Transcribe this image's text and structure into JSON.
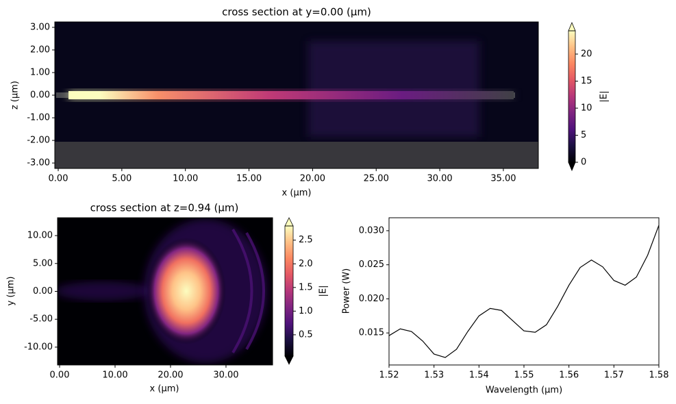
{
  "chart_data": [
    {
      "type": "heatmap",
      "title": "cross section at y=0.00 (μm)",
      "xlabel": "x (μm)",
      "ylabel": "z (μm)",
      "xlim": [
        -0.27,
        37.75
      ],
      "ylim": [
        -3.24,
        3.24
      ],
      "xticks": [
        {
          "value": 0,
          "label": "0.00"
        },
        {
          "value": 5,
          "label": "5.00"
        },
        {
          "value": 10,
          "label": "10.00"
        },
        {
          "value": 15,
          "label": "15.00"
        },
        {
          "value": 20,
          "label": "20.00"
        },
        {
          "value": 25,
          "label": "25.00"
        },
        {
          "value": 30,
          "label": "30.00"
        },
        {
          "value": 35,
          "label": "35.00"
        }
      ],
      "yticks": [
        {
          "value": 3,
          "label": "3.00"
        },
        {
          "value": 2,
          "label": "2.00"
        },
        {
          "value": 1,
          "label": "1.00"
        },
        {
          "value": 0,
          "label": "0.00"
        },
        {
          "value": -1,
          "label": "-1.00"
        },
        {
          "value": -2,
          "label": "-2.00"
        },
        {
          "value": -3,
          "label": "-3.00"
        }
      ],
      "colorbar": {
        "label": "|E|",
        "lim": [
          0,
          24.3
        ],
        "ticks": [
          0,
          5,
          10,
          15,
          20
        ]
      }
    },
    {
      "type": "heatmap",
      "title": "cross section at z=0.94 (μm)",
      "xlabel": "x (μm)",
      "ylabel": "y (μm)",
      "xlim": [
        -0.37,
        38.4
      ],
      "ylim": [
        -13.2,
        13.2
      ],
      "xticks": [
        {
          "value": 0,
          "label": "0.00"
        },
        {
          "value": 10,
          "label": "10.00"
        },
        {
          "value": 20,
          "label": "20.00"
        },
        {
          "value": 30,
          "label": "30.00"
        }
      ],
      "yticks": [
        {
          "value": 10,
          "label": "10.00"
        },
        {
          "value": 5,
          "label": "5.00"
        },
        {
          "value": 0,
          "label": "0.00"
        },
        {
          "value": -5,
          "label": "-5.00"
        },
        {
          "value": -10,
          "label": "-10.00"
        }
      ],
      "colorbar": {
        "label": "|E|",
        "lim": [
          0.05,
          2.8
        ],
        "ticks": [
          0.5,
          {
            "value": 1,
            "label": "1.0"
          },
          1.5,
          {
            "value": 2,
            "label": "2.0"
          },
          2.5
        ]
      }
    },
    {
      "type": "line",
      "xlabel": "Wavelength (μm)",
      "ylabel": "Power (W)",
      "color": "#000000",
      "xlim": [
        1.52,
        1.58
      ],
      "ylim": [
        0.0103,
        0.0319
      ],
      "xticks": [
        1.52,
        1.53,
        1.54,
        1.55,
        1.56,
        1.57,
        1.58
      ],
      "yticks": [
        0.015,
        {
          "value": 0.02,
          "label": "0.020"
        },
        0.025,
        {
          "value": 0.03,
          "label": "0.030"
        }
      ],
      "x": [
        1.52,
        1.5225,
        1.525,
        1.5275,
        1.53,
        1.5325,
        1.535,
        1.5375,
        1.54,
        1.5425,
        1.545,
        1.5475,
        1.55,
        1.5525,
        1.555,
        1.5575,
        1.56,
        1.5625,
        1.565,
        1.5675,
        1.57,
        1.5725,
        1.575,
        1.5775,
        1.58
      ],
      "values": [
        0.0146,
        0.0156,
        0.0152,
        0.0138,
        0.0119,
        0.0114,
        0.0126,
        0.0152,
        0.0175,
        0.0186,
        0.0183,
        0.0168,
        0.0153,
        0.0151,
        0.0162,
        0.0189,
        0.022,
        0.0246,
        0.0257,
        0.0247,
        0.0227,
        0.022,
        0.0232,
        0.0264,
        0.0308
      ]
    }
  ]
}
